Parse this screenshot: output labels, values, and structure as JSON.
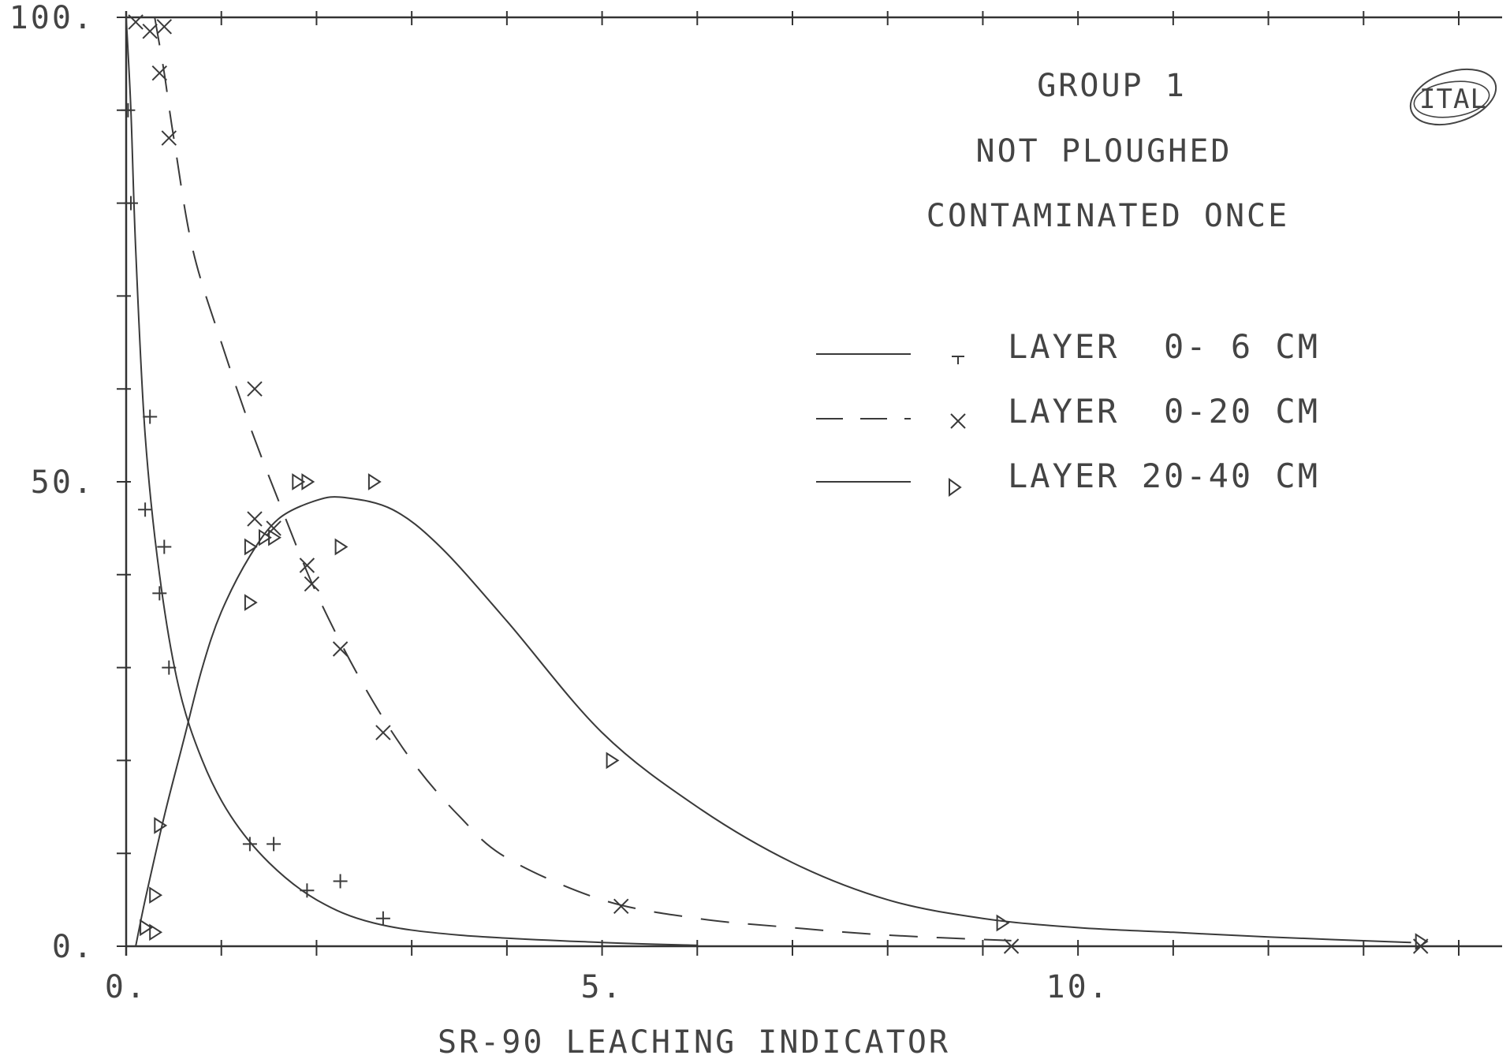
{
  "chart_data": {
    "type": "scatter",
    "xlabel": "SR-90 LEACHING INDICATOR",
    "ylabel": "",
    "xlim": [
      0,
      14
    ],
    "ylim": [
      0,
      100
    ],
    "x_ticks": [
      {
        "value": 0,
        "label": "0."
      },
      {
        "value": 5,
        "label": "5."
      },
      {
        "value": 10,
        "label": "10."
      }
    ],
    "y_ticks": [
      {
        "value": 0,
        "label": "0."
      },
      {
        "value": 50,
        "label": "50."
      },
      {
        "value": 100,
        "label": "100."
      }
    ],
    "header": [
      "GROUP 1",
      "NOT PLOUGHED",
      "CONTAMINATED ONCE"
    ],
    "logo_text": "ITAL",
    "legend_placement": "upper-right",
    "grid": false,
    "series": [
      {
        "name": "LAYER  0- 6 CM",
        "marker": "+",
        "line_style": "solid",
        "points": [
          [
            0.02,
            90
          ],
          [
            0.05,
            80
          ],
          [
            0.25,
            57
          ],
          [
            0.2,
            47
          ],
          [
            0.4,
            43
          ],
          [
            0.35,
            38
          ],
          [
            0.45,
            30
          ],
          [
            1.3,
            11
          ],
          [
            1.55,
            11
          ],
          [
            1.9,
            6
          ],
          [
            2.25,
            7
          ],
          [
            2.7,
            3
          ]
        ],
        "curve": [
          [
            0,
            100
          ],
          [
            0.05,
            90
          ],
          [
            0.1,
            75
          ],
          [
            0.2,
            55
          ],
          [
            0.35,
            40
          ],
          [
            0.55,
            28
          ],
          [
            0.8,
            20
          ],
          [
            1.1,
            14
          ],
          [
            1.5,
            9
          ],
          [
            2.0,
            5
          ],
          [
            2.6,
            2.5
          ],
          [
            3.5,
            1.2
          ],
          [
            5.0,
            0.4
          ],
          [
            6.0,
            0.1
          ]
        ]
      },
      {
        "name": "LAYER  0-20 CM",
        "marker": "x",
        "line_style": "dashed",
        "points": [
          [
            0.1,
            99.5
          ],
          [
            0.25,
            98.5
          ],
          [
            0.4,
            99
          ],
          [
            0.35,
            94
          ],
          [
            0.45,
            87
          ],
          [
            1.35,
            60
          ],
          [
            1.35,
            46
          ],
          [
            1.55,
            45
          ],
          [
            1.9,
            41
          ],
          [
            1.95,
            39
          ],
          [
            2.25,
            32
          ],
          [
            2.7,
            23
          ],
          [
            5.2,
            4.3
          ],
          [
            9.3,
            0
          ],
          [
            13.6,
            0
          ]
        ],
        "curve": [
          [
            0.3,
            100
          ],
          [
            0.4,
            94
          ],
          [
            0.5,
            87
          ],
          [
            0.7,
            75
          ],
          [
            1.0,
            65
          ],
          [
            1.3,
            56
          ],
          [
            1.6,
            48
          ],
          [
            2.0,
            38
          ],
          [
            2.5,
            28
          ],
          [
            3.0,
            20
          ],
          [
            3.5,
            14
          ],
          [
            4.0,
            9.5
          ],
          [
            5.0,
            5
          ],
          [
            6.0,
            3
          ],
          [
            7.0,
            2
          ],
          [
            8.0,
            1.2
          ],
          [
            9.3,
            0.6
          ]
        ]
      },
      {
        "name": "LAYER 20-40 CM",
        "marker": "triangle",
        "line_style": "solid",
        "points": [
          [
            0.2,
            2
          ],
          [
            0.3,
            1.5
          ],
          [
            0.3,
            5.5
          ],
          [
            0.35,
            13
          ],
          [
            1.3,
            43
          ],
          [
            1.45,
            44
          ],
          [
            1.55,
            44
          ],
          [
            1.3,
            37
          ],
          [
            1.8,
            50
          ],
          [
            1.9,
            50
          ],
          [
            2.6,
            50
          ],
          [
            2.25,
            43
          ],
          [
            5.1,
            20
          ],
          [
            9.2,
            2.5
          ],
          [
            13.6,
            0.5
          ]
        ],
        "curve": [
          [
            0.1,
            0
          ],
          [
            0.2,
            5
          ],
          [
            0.4,
            14
          ],
          [
            0.6,
            22
          ],
          [
            0.8,
            30
          ],
          [
            1.0,
            36
          ],
          [
            1.3,
            42
          ],
          [
            1.6,
            46
          ],
          [
            2.0,
            48
          ],
          [
            2.3,
            48.3
          ],
          [
            2.8,
            47
          ],
          [
            3.3,
            43
          ],
          [
            4.0,
            35
          ],
          [
            5.0,
            23
          ],
          [
            6.0,
            15
          ],
          [
            7.0,
            9
          ],
          [
            8.0,
            5
          ],
          [
            9.0,
            3
          ],
          [
            10.0,
            2
          ],
          [
            11.0,
            1.5
          ],
          [
            12.0,
            1
          ],
          [
            13.5,
            0.4
          ]
        ]
      }
    ]
  }
}
